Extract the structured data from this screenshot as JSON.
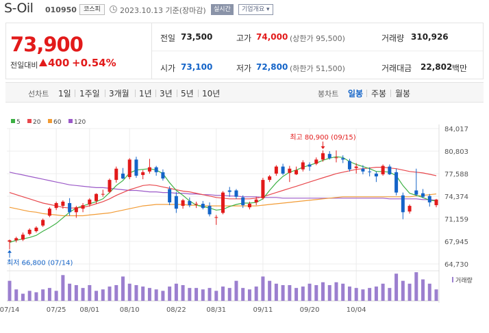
{
  "header": {
    "logo": "S-Oil",
    "code": "010950",
    "market": "코스피",
    "date": "2023.10.13 기준(장마감)",
    "realtime_btn": "실시간",
    "info_btn": "기업개요 ▾"
  },
  "summary": {
    "price": "73,900",
    "change_label": "전일대비",
    "change_value": "400",
    "change_percent": "+0.54%",
    "prev_label": "전일",
    "prev_value": "73,500",
    "high_label": "고가",
    "high_value": "74,000",
    "upper_limit": "(상한가 95,500)",
    "volume_label": "거래량",
    "volume_value": "310,926",
    "open_label": "시가",
    "open_value": "73,100",
    "low_label": "저가",
    "low_value": "72,800",
    "lower_limit": "(하한가 51,500)",
    "amount_label": "거래대금",
    "amount_value": "22,802",
    "amount_unit": "백만",
    "up_color": "#e21a1a",
    "down_color": "#1464c8"
  },
  "period_bar": {
    "line_title": "선차트",
    "line_items": [
      "1일",
      "1주일",
      "3개월",
      "1년",
      "3년",
      "5년",
      "10년"
    ],
    "candle_title": "봉차트",
    "candle_items": [
      "일봉",
      "주봉",
      "월봉"
    ],
    "active_candle": "일봉"
  },
  "chart_data": {
    "type": "candlestick",
    "legend": [
      {
        "name": "5",
        "color": "#3cb043"
      },
      {
        "name": "20",
        "color": "#e8474c"
      },
      {
        "name": "60",
        "color": "#f29b34"
      },
      {
        "name": "120",
        "color": "#9b59c8"
      }
    ],
    "y_ticks": [
      "84,017",
      "80,803",
      "77,588",
      "74,374",
      "71,159",
      "67,945",
      "64,730"
    ],
    "ylim": [
      64730,
      84017
    ],
    "x_labels": [
      "07/14",
      "07/25",
      "08/01",
      "08/10",
      "08/22",
      "08/31",
      "09/11",
      "09/20",
      "10/04"
    ],
    "high_annotation": "최고 80,900 (09/15)",
    "low_annotation": "최저 66,800 (07/14)",
    "volume_label": "거래량",
    "up_color": "#e21a1a",
    "down_color": "#1464c8",
    "candles": [
      {
        "o": 67900,
        "h": 68200,
        "l": 66800,
        "c": 68100
      },
      {
        "o": 68100,
        "h": 68600,
        "l": 67800,
        "c": 68400
      },
      {
        "o": 68200,
        "h": 69200,
        "l": 68000,
        "c": 68900
      },
      {
        "o": 69000,
        "h": 69800,
        "l": 68800,
        "c": 69600
      },
      {
        "o": 69400,
        "h": 70100,
        "l": 69200,
        "c": 69900
      },
      {
        "o": 70200,
        "h": 71200,
        "l": 70000,
        "c": 71000
      },
      {
        "o": 71600,
        "h": 72800,
        "l": 71400,
        "c": 72600
      },
      {
        "o": 72700,
        "h": 73600,
        "l": 72400,
        "c": 73400
      },
      {
        "o": 73000,
        "h": 73800,
        "l": 72600,
        "c": 73600
      },
      {
        "o": 73400,
        "h": 74100,
        "l": 71600,
        "c": 72100
      },
      {
        "o": 72100,
        "h": 73000,
        "l": 71300,
        "c": 72800
      },
      {
        "o": 72600,
        "h": 73400,
        "l": 72100,
        "c": 73100
      },
      {
        "o": 73200,
        "h": 74100,
        "l": 72900,
        "c": 73900
      },
      {
        "o": 73700,
        "h": 74800,
        "l": 73300,
        "c": 74700
      },
      {
        "o": 74700,
        "h": 75300,
        "l": 74300,
        "c": 74700
      },
      {
        "o": 75000,
        "h": 76900,
        "l": 74800,
        "c": 76700
      },
      {
        "o": 76700,
        "h": 78600,
        "l": 76300,
        "c": 78300
      },
      {
        "o": 77600,
        "h": 78400,
        "l": 76800,
        "c": 76900
      },
      {
        "o": 77100,
        "h": 79800,
        "l": 76800,
        "c": 79600
      },
      {
        "o": 79600,
        "h": 80000,
        "l": 77000,
        "c": 77300
      },
      {
        "o": 77400,
        "h": 78100,
        "l": 76800,
        "c": 77800
      },
      {
        "o": 77900,
        "h": 79700,
        "l": 77600,
        "c": 78500
      },
      {
        "o": 78500,
        "h": 78700,
        "l": 77300,
        "c": 77800
      },
      {
        "o": 77800,
        "h": 78200,
        "l": 76600,
        "c": 76900
      },
      {
        "o": 75400,
        "h": 75800,
        "l": 73100,
        "c": 73500
      },
      {
        "o": 74400,
        "h": 75000,
        "l": 72000,
        "c": 72600
      },
      {
        "o": 73000,
        "h": 74000,
        "l": 72600,
        "c": 73800
      },
      {
        "o": 73700,
        "h": 74200,
        "l": 72800,
        "c": 73100
      },
      {
        "o": 73200,
        "h": 73600,
        "l": 72700,
        "c": 73300
      },
      {
        "o": 73300,
        "h": 73700,
        "l": 72500,
        "c": 72700
      },
      {
        "o": 73000,
        "h": 73500,
        "l": 71500,
        "c": 71800
      },
      {
        "o": 71400,
        "h": 71700,
        "l": 70300,
        "c": 71400
      },
      {
        "o": 72000,
        "h": 75100,
        "l": 71800,
        "c": 74900
      },
      {
        "o": 75200,
        "h": 75700,
        "l": 74300,
        "c": 75000
      },
      {
        "o": 75200,
        "h": 75400,
        "l": 74000,
        "c": 74300
      },
      {
        "o": 74200,
        "h": 74500,
        "l": 72700,
        "c": 73100
      },
      {
        "o": 72800,
        "h": 73600,
        "l": 72500,
        "c": 73300
      },
      {
        "o": 73500,
        "h": 74300,
        "l": 73100,
        "c": 73900
      },
      {
        "o": 74100,
        "h": 77000,
        "l": 73900,
        "c": 76700
      },
      {
        "o": 76700,
        "h": 77400,
        "l": 76400,
        "c": 77200
      },
      {
        "o": 77600,
        "h": 78800,
        "l": 77300,
        "c": 78600
      },
      {
        "o": 78600,
        "h": 79000,
        "l": 77400,
        "c": 77600
      },
      {
        "o": 77700,
        "h": 78700,
        "l": 76400,
        "c": 78300
      },
      {
        "o": 77500,
        "h": 78600,
        "l": 77400,
        "c": 78100
      },
      {
        "o": 78200,
        "h": 79500,
        "l": 77900,
        "c": 79200
      },
      {
        "o": 78900,
        "h": 79200,
        "l": 78000,
        "c": 78600
      },
      {
        "o": 79000,
        "h": 79900,
        "l": 78800,
        "c": 79600
      },
      {
        "o": 79600,
        "h": 80900,
        "l": 79300,
        "c": 80500
      },
      {
        "o": 80400,
        "h": 80800,
        "l": 79600,
        "c": 79800
      },
      {
        "o": 79800,
        "h": 80900,
        "l": 79200,
        "c": 79900
      },
      {
        "o": 79800,
        "h": 80200,
        "l": 79100,
        "c": 79600
      },
      {
        "o": 79400,
        "h": 79700,
        "l": 77900,
        "c": 78200
      },
      {
        "o": 78400,
        "h": 79100,
        "l": 77600,
        "c": 78600
      },
      {
        "o": 78300,
        "h": 78800,
        "l": 77500,
        "c": 77900
      },
      {
        "o": 77900,
        "h": 78500,
        "l": 77200,
        "c": 77800
      },
      {
        "o": 77600,
        "h": 77900,
        "l": 76400,
        "c": 77200
      },
      {
        "o": 77500,
        "h": 78900,
        "l": 77300,
        "c": 78700
      },
      {
        "o": 78600,
        "h": 78900,
        "l": 77400,
        "c": 77500
      },
      {
        "o": 77800,
        "h": 78300,
        "l": 74500,
        "c": 74900
      },
      {
        "o": 74500,
        "h": 74900,
        "l": 71100,
        "c": 72100
      },
      {
        "o": 72200,
        "h": 73200,
        "l": 71900,
        "c": 73000
      },
      {
        "o": 75200,
        "h": 78300,
        "l": 74400,
        "c": 74600
      },
      {
        "o": 74800,
        "h": 75400,
        "l": 74100,
        "c": 74300
      },
      {
        "o": 74400,
        "h": 74700,
        "l": 72900,
        "c": 73500
      },
      {
        "o": 73100,
        "h": 74000,
        "l": 72800,
        "c": 73900
      }
    ],
    "volumes": [
      70,
      40,
      25,
      35,
      30,
      40,
      45,
      35,
      90,
      60,
      55,
      45,
      55,
      35,
      40,
      50,
      55,
      85,
      60,
      55,
      50,
      45,
      40,
      35,
      50,
      60,
      55,
      45,
      45,
      40,
      45,
      35,
      50,
      45,
      70,
      45,
      40,
      50,
      85,
      70,
      60,
      55,
      55,
      45,
      50,
      60,
      55,
      65,
      55,
      65,
      60,
      50,
      45,
      40,
      45,
      50,
      60,
      45,
      95,
      70,
      60,
      100,
      75,
      60,
      40
    ],
    "ma": {
      "ma5": [
        67800,
        68100,
        68300,
        68500,
        68800,
        69400,
        69900,
        70500,
        71300,
        72100,
        72700,
        73000,
        73300,
        73600,
        74000,
        74900,
        75900,
        76600,
        77700,
        78100,
        78200,
        78300,
        78100,
        77600,
        76300,
        75200,
        74500,
        73700,
        73100,
        72900,
        72700,
        72400,
        72500,
        72900,
        73200,
        73400,
        73400,
        73500,
        74000,
        75200,
        76300,
        77200,
        77800,
        78100,
        78500,
        78800,
        79100,
        79500,
        79800,
        80000,
        79900,
        79300,
        78900,
        78600,
        78300,
        77900,
        77900,
        77800,
        77300,
        75900,
        74800,
        74500,
        74200,
        73800,
        73700
      ],
      "ma20": [
        74900,
        74600,
        74300,
        74000,
        73700,
        73400,
        73200,
        73000,
        72800,
        72700,
        72700,
        72800,
        73000,
        73300,
        73600,
        74000,
        74500,
        74900,
        75300,
        75600,
        75900,
        76000,
        75900,
        75700,
        75500,
        75300,
        75100,
        75000,
        74800,
        74600,
        74400,
        74200,
        74100,
        74000,
        74000,
        74000,
        74000,
        74100,
        74300,
        74600,
        74900,
        75200,
        75500,
        75800,
        76100,
        76400,
        76700,
        77000,
        77300,
        77600,
        77800,
        78000,
        78200,
        78300,
        78400,
        78500,
        78500,
        78400,
        78300,
        78100,
        77900,
        77800,
        77700,
        77500,
        77300
      ],
      "ma60": [
        72800,
        72600,
        72400,
        72200,
        72100,
        71900,
        71800,
        71700,
        71600,
        71600,
        71600,
        71600,
        71700,
        71800,
        71900,
        72000,
        72200,
        72400,
        72600,
        72800,
        73000,
        73100,
        73200,
        73200,
        73200,
        73200,
        73200,
        73100,
        73100,
        73000,
        73000,
        73000,
        73000,
        73000,
        73000,
        73000,
        73000,
        73000,
        73100,
        73200,
        73300,
        73400,
        73500,
        73600,
        73700,
        73800,
        73900,
        74000,
        74100,
        74200,
        74300,
        74300,
        74300,
        74300,
        74300,
        74300,
        74300,
        74300,
        74300,
        74300,
        74300,
        74400,
        74500,
        74600,
        74700
      ],
      "ma120": [
        77800,
        77600,
        77400,
        77200,
        77000,
        76800,
        76600,
        76400,
        76200,
        76000,
        75900,
        75800,
        75700,
        75600,
        75600,
        75500,
        75400,
        75300,
        75200,
        75200,
        75100,
        75000,
        75000,
        74900,
        74900,
        74800,
        74800,
        74700,
        74700,
        74600,
        74600,
        74500,
        74500,
        74400,
        74400,
        74300,
        74300,
        74300,
        74200,
        74200,
        74200,
        74100,
        74100,
        74100,
        74100,
        74100,
        74100,
        74100,
        74100,
        74100,
        74100,
        74100,
        74100,
        74100,
        74100,
        74100,
        74100,
        74000,
        74000,
        74000,
        74000,
        74000,
        73900,
        73900,
        73800
      ]
    }
  }
}
